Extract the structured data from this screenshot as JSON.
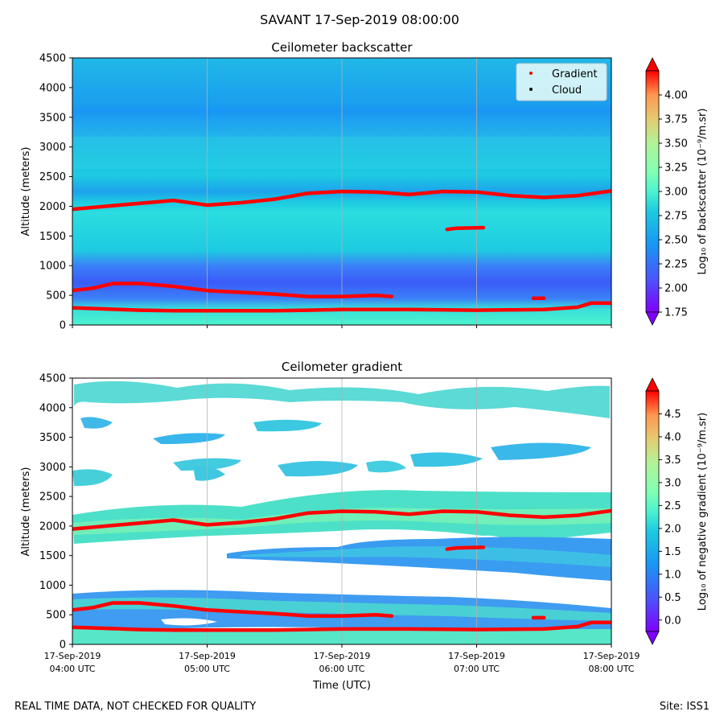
{
  "figure": {
    "suptitle": "SAVANT 17-Sep-2019 08:00:00",
    "footer_left": "REAL TIME DATA, NOT CHECKED FOR QUALITY",
    "footer_right": "Site: ISS1"
  },
  "chart_data": [
    {
      "type": "heatmap",
      "title": "Ceilometer backscatter",
      "xlabel": "",
      "ylabel": "Altitude (meters)",
      "xlim_hours_utc": [
        4,
        8
      ],
      "ylim": [
        0,
        4500
      ],
      "yticks": [
        0,
        500,
        1000,
        1500,
        2000,
        2500,
        3000,
        3500,
        4000,
        4500
      ],
      "xticks_hours_utc": [
        4,
        5,
        6,
        7,
        8
      ],
      "colorbar": {
        "label": "Log₁₀ of backscatter (10⁻⁹/m.sr)",
        "range": [
          1.75,
          4.25
        ],
        "ticks": [
          "1.75",
          "2.00",
          "2.25",
          "2.50",
          "2.75",
          "3.00",
          "3.25",
          "3.50",
          "3.75",
          "4.00"
        ],
        "extend": "both",
        "colormap": "rainbow"
      },
      "legend": {
        "placement": "top-right",
        "entries": [
          {
            "label": "Gradient",
            "color": "#ff0000"
          },
          {
            "label": "Cloud",
            "color": "#000000"
          }
        ]
      },
      "field_description_values": {
        "surface_layer_log10": 2.75,
        "dark_band_center_m": 900,
        "dark_band_log10": 2.05,
        "mid_layer_log10": 2.45,
        "aloft_log10": 2.35
      }
    },
    {
      "type": "heatmap",
      "title": "Ceilometer gradient",
      "xlabel": "Time (UTC)",
      "ylabel": "Altitude (meters)",
      "xlim_hours_utc": [
        4,
        8
      ],
      "ylim": [
        0,
        4500
      ],
      "yticks": [
        0,
        500,
        1000,
        1500,
        2000,
        2500,
        3000,
        3500,
        4000,
        4500
      ],
      "xticks_hours_utc": [
        4,
        5,
        6,
        7,
        8
      ],
      "xtick_labels": [
        [
          "17-Sep-2019",
          "04:00 UTC"
        ],
        [
          "17-Sep-2019",
          "05:00 UTC"
        ],
        [
          "17-Sep-2019",
          "06:00 UTC"
        ],
        [
          "17-Sep-2019",
          "07:00 UTC"
        ],
        [
          "17-Sep-2019",
          "08:00 UTC"
        ]
      ],
      "colorbar": {
        "label": "Log₁₀ of negative gradient (10⁻⁹/m.sr)",
        "range": [
          -0.25,
          5.0
        ],
        "ticks": [
          "0.0",
          "0.5",
          "1.0",
          "1.5",
          "2.0",
          "2.5",
          "3.0",
          "3.5",
          "4.0",
          "4.5"
        ],
        "extend": "both",
        "colormap": "rainbow"
      },
      "patches_log10": {
        "top_layer": 1.6,
        "mid_upper_layer": 1.4,
        "residual_layer": 1.8,
        "upper_pbl_layer": 1.3,
        "lower_pbl_layer": 1.2,
        "surface_layer": 1.4
      }
    }
  ],
  "gradient_series": {
    "name": "Gradient",
    "color": "#ff0000",
    "lines": [
      {
        "name": "upper-layer-top",
        "hours": [
          4.0,
          4.25,
          4.5,
          4.75,
          5.0,
          5.25,
          5.5,
          5.75,
          6.0,
          6.25,
          6.5,
          6.75,
          7.0,
          7.25,
          7.5,
          7.75,
          8.0
        ],
        "alt": [
          1950,
          2000,
          2050,
          2100,
          2020,
          2060,
          2120,
          2220,
          2250,
          2240,
          2200,
          2250,
          2240,
          2180,
          2150,
          2180,
          2260
        ]
      },
      {
        "name": "middle-layer",
        "hours": [
          4.0,
          4.15,
          4.3,
          4.5,
          4.75,
          5.0,
          5.25,
          5.5,
          5.75,
          6.0,
          6.25,
          6.37
        ],
        "alt": [
          580,
          620,
          700,
          700,
          650,
          580,
          550,
          520,
          480,
          480,
          500,
          480
        ]
      },
      {
        "name": "surface-layer",
        "hours": [
          4.0,
          4.25,
          4.5,
          4.75,
          5.0,
          5.5,
          6.0,
          6.5,
          7.0,
          7.5,
          7.75,
          7.85,
          8.0
        ],
        "alt": [
          290,
          270,
          250,
          240,
          240,
          240,
          260,
          260,
          250,
          260,
          300,
          370,
          370
        ]
      },
      {
        "name": "elevated-fragment",
        "hours": [
          6.78,
          6.85,
          7.05
        ],
        "alt": [
          1610,
          1630,
          1640
        ]
      },
      {
        "name": "small-fragment",
        "hours": [
          7.42,
          7.5
        ],
        "alt": [
          450,
          450
        ]
      }
    ]
  }
}
